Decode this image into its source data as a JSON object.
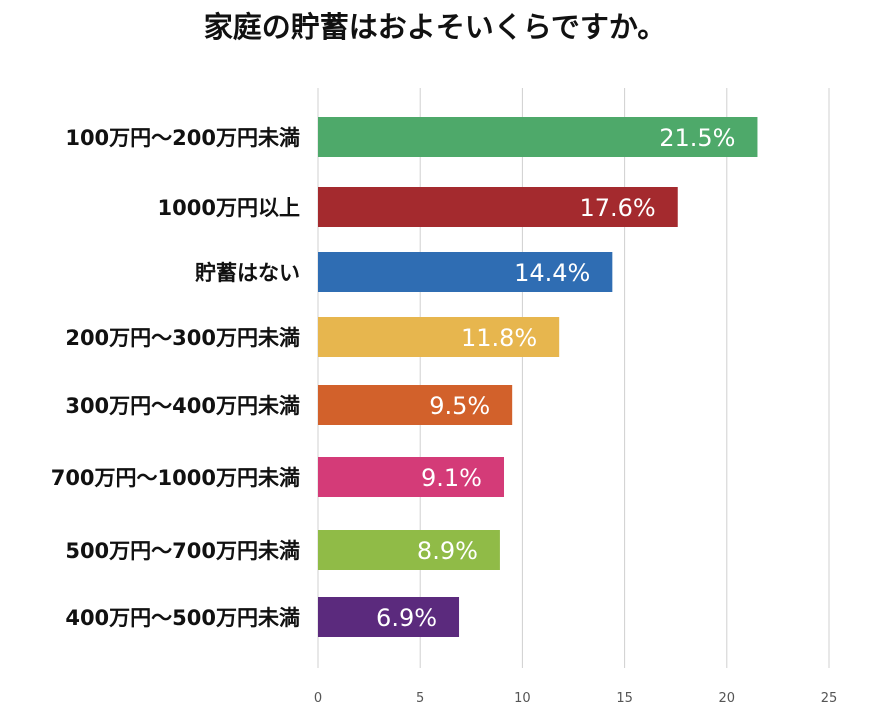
{
  "chart_data": {
    "type": "bar",
    "orientation": "horizontal",
    "title": "家庭の貯蓄はおよそいくらですか。",
    "categories": [
      "100万円〜200万円未満",
      "1000万円以上",
      "貯蓄はない",
      "200万円〜300万円未満",
      "300万円〜400万円未満",
      "700万円〜1000万円未満",
      "500万円〜700万円未満",
      "400万円〜500万円未満"
    ],
    "values": [
      21.5,
      17.6,
      14.4,
      11.8,
      9.5,
      9.1,
      8.9,
      6.9
    ],
    "data_labels": [
      "21.5%",
      "17.6%",
      "14.4%",
      "11.8%",
      "9.5%",
      "9.1%",
      "8.9%",
      "6.9%"
    ],
    "colors": [
      "#4ea96a",
      "#a42a2e",
      "#2f6db3",
      "#e7b64e",
      "#d2612b",
      "#d43b78",
      "#90bb47",
      "#5b2a7d"
    ],
    "xlim": [
      0,
      25
    ],
    "xticks": [
      "0",
      "5",
      "10",
      "15",
      "20",
      "25"
    ],
    "grid": true,
    "xlabel": "",
    "ylabel": ""
  }
}
